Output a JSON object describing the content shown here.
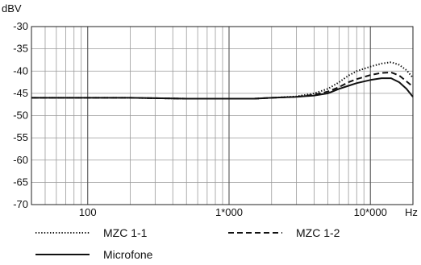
{
  "chart_data": {
    "type": "line",
    "title": "",
    "ylabel": "dBV",
    "xlabel": "",
    "x_unit": "Hz",
    "x_scale": "log",
    "xlim": [
      40,
      20000
    ],
    "ylim": [
      -70,
      -30
    ],
    "grid": true,
    "legend_placement": "bottom",
    "y_ticks": [
      "-30",
      "-35",
      "-40",
      "-45",
      "-50",
      "-55",
      "-60",
      "-65",
      "-70"
    ],
    "x_tick_labels": [
      {
        "value": 100,
        "label": "100"
      },
      {
        "value": 1000,
        "label": "1*000"
      },
      {
        "value": 10000,
        "label": "10*000"
      }
    ],
    "series": [
      {
        "name": "MZC 1-1",
        "style": "dotted",
        "points": [
          [
            40,
            -46
          ],
          [
            200,
            -46
          ],
          [
            500,
            -46.2
          ],
          [
            1000,
            -46.2
          ],
          [
            1500,
            -46.2
          ],
          [
            2000,
            -46
          ],
          [
            3000,
            -45.7
          ],
          [
            4000,
            -45
          ],
          [
            5000,
            -44
          ],
          [
            6000,
            -42.5
          ],
          [
            7000,
            -41
          ],
          [
            8000,
            -40
          ],
          [
            10000,
            -39
          ],
          [
            12000,
            -38.3
          ],
          [
            14000,
            -38
          ],
          [
            16000,
            -38.6
          ],
          [
            18000,
            -39.8
          ],
          [
            20000,
            -41.5
          ]
        ]
      },
      {
        "name": "MZC 1-2",
        "style": "dashed",
        "points": [
          [
            40,
            -46
          ],
          [
            200,
            -46
          ],
          [
            500,
            -46.2
          ],
          [
            1000,
            -46.2
          ],
          [
            1500,
            -46.2
          ],
          [
            2000,
            -46
          ],
          [
            3000,
            -45.8
          ],
          [
            4000,
            -45.3
          ],
          [
            5000,
            -44.6
          ],
          [
            6000,
            -43.6
          ],
          [
            7000,
            -42.5
          ],
          [
            8000,
            -41.8
          ],
          [
            10000,
            -40.9
          ],
          [
            12000,
            -40.4
          ],
          [
            14000,
            -40.3
          ],
          [
            16000,
            -41
          ],
          [
            18000,
            -42.3
          ],
          [
            20000,
            -43.5
          ]
        ]
      },
      {
        "name": "Microfone",
        "style": "solid",
        "points": [
          [
            40,
            -46
          ],
          [
            200,
            -46
          ],
          [
            500,
            -46.2
          ],
          [
            1000,
            -46.2
          ],
          [
            1500,
            -46.2
          ],
          [
            2000,
            -46
          ],
          [
            3000,
            -45.8
          ],
          [
            4000,
            -45.5
          ],
          [
            5000,
            -45
          ],
          [
            6000,
            -44
          ],
          [
            7000,
            -43.3
          ],
          [
            8000,
            -42.7
          ],
          [
            10000,
            -42
          ],
          [
            12000,
            -41.6
          ],
          [
            14000,
            -41.6
          ],
          [
            16000,
            -42.5
          ],
          [
            18000,
            -44
          ],
          [
            20000,
            -45.8
          ]
        ]
      }
    ]
  }
}
